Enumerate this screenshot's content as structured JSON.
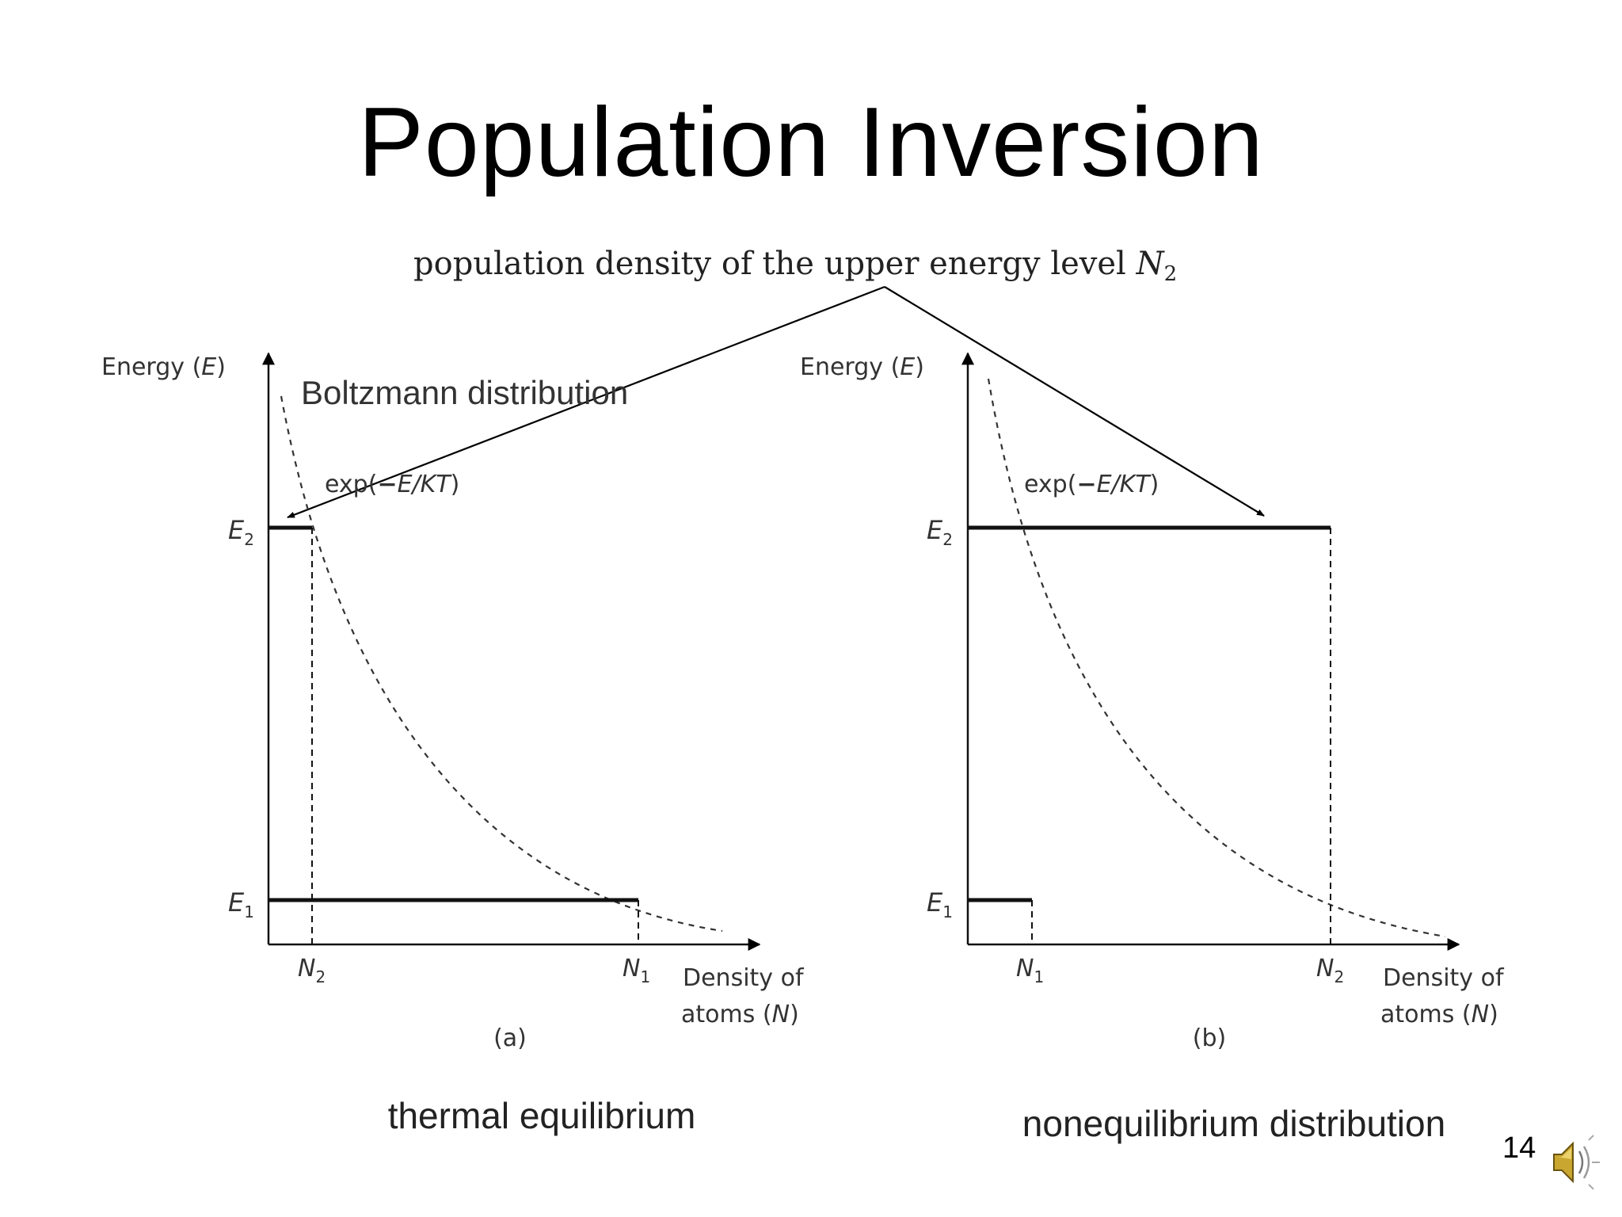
{
  "slide": {
    "title": "Population Inversion",
    "page_number": "14"
  },
  "annotation": {
    "prefix": "population density of the upper energy level ",
    "symbol": "N",
    "subscript": "2"
  },
  "panel_a": {
    "energy_label": "Energy (",
    "energy_symbol": "E",
    "energy_close": ")",
    "distribution_label": "Boltzmann distribution",
    "exp_prefix": "exp(",
    "exp_minus": "−",
    "exp_body": "E/KT",
    "exp_close": ")",
    "e2": "E",
    "e2_sub": "2",
    "e1": "E",
    "e1_sub": "1",
    "tick_left": "N",
    "tick_left_sub": "2",
    "tick_right": "N",
    "tick_right_sub": "1",
    "x_label_line1": "Density of",
    "x_label_line2_prefix": "atoms (",
    "x_label_symbol": "N",
    "x_label_close": ")",
    "panel_tag": "(a)",
    "caption": "thermal equilibrium"
  },
  "panel_b": {
    "energy_label": "Energy (",
    "energy_symbol": "E",
    "energy_close": ")",
    "exp_prefix": "exp(",
    "exp_minus": "−",
    "exp_body": "E/KT",
    "exp_close": ")",
    "e2": "E",
    "e2_sub": "2",
    "e1": "E",
    "e1_sub": "1",
    "tick_left": "N",
    "tick_left_sub": "1",
    "tick_right": "N",
    "tick_right_sub": "2",
    "x_label_line1": "Density of",
    "x_label_line2_prefix": "atoms (",
    "x_label_symbol": "N",
    "x_label_close": ")",
    "panel_tag": "(b)",
    "caption": "nonequilibrium distribution"
  },
  "icons": {
    "speaker": "speaker-icon"
  }
}
